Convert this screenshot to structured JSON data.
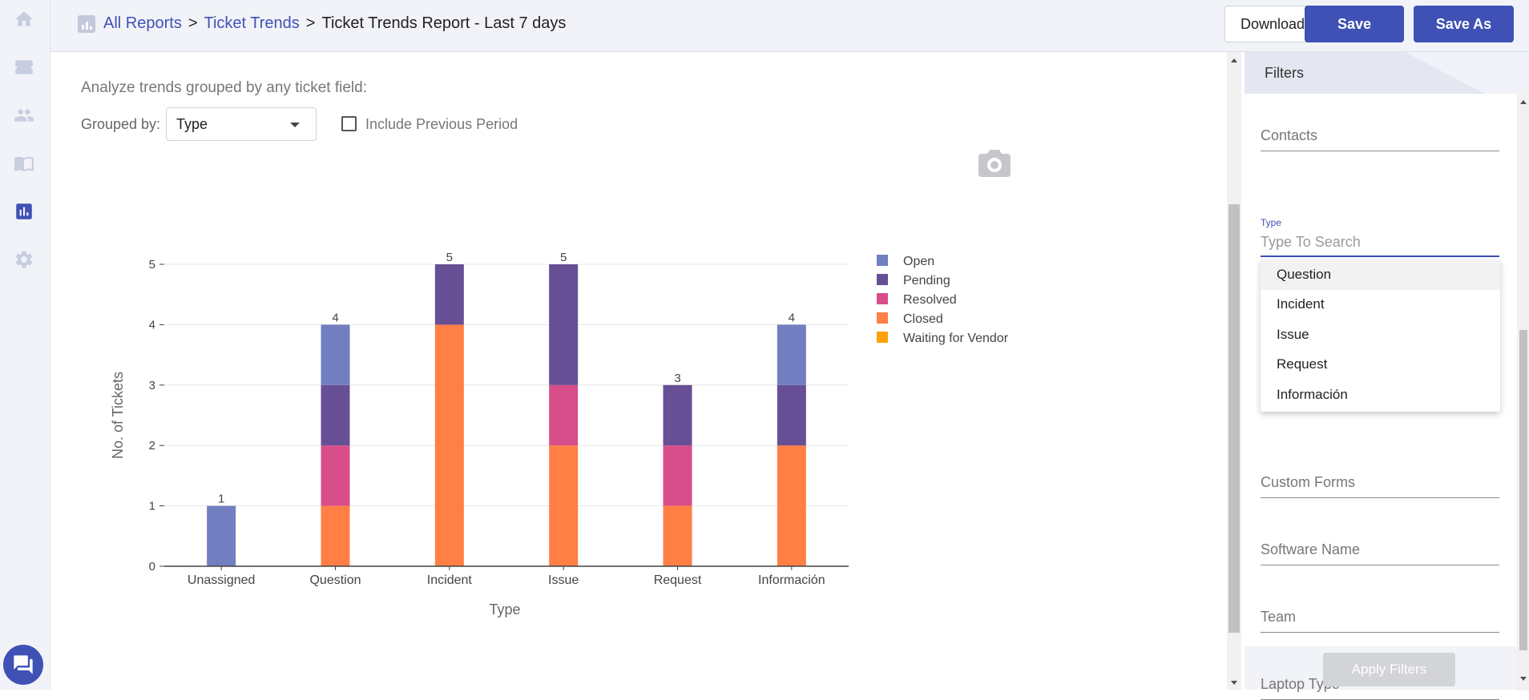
{
  "breadcrumb": {
    "all_reports": "All Reports",
    "sep1": ">",
    "ticket_trends": "Ticket Trends",
    "sep2": ">",
    "current": "Ticket Trends Report - Last 7 days"
  },
  "toolbar": {
    "download_label": "Download",
    "save_label": "Save",
    "save_as_label": "Save As"
  },
  "sidebar": {
    "icons": [
      "home-icon",
      "ticket-icon",
      "contacts-icon",
      "knowledge-base-icon",
      "reports-icon",
      "settings-icon"
    ],
    "active": "reports-icon"
  },
  "report": {
    "intro": "Analyze trends grouped by any ticket field:",
    "grouped_by_label": "Grouped by:",
    "grouped_by_value": "Type",
    "include_previous_label": "Include Previous Period",
    "include_previous_checked": false
  },
  "chart_data": {
    "type": "bar",
    "stacked": true,
    "categories": [
      "Unassigned",
      "Question",
      "Incident",
      "Issue",
      "Request",
      "Información"
    ],
    "series": [
      {
        "name": "Closed",
        "color": "#ff7f45",
        "values": [
          0,
          1,
          4,
          2,
          1,
          2
        ]
      },
      {
        "name": "Resolved",
        "color": "#d84e8a",
        "values": [
          0,
          1,
          0,
          1,
          1,
          0
        ]
      },
      {
        "name": "Pending",
        "color": "#674f96",
        "values": [
          0,
          1,
          1,
          2,
          1,
          1
        ]
      },
      {
        "name": "Open",
        "color": "#717fc0",
        "values": [
          1,
          1,
          0,
          0,
          0,
          1
        ]
      },
      {
        "name": "Waiting for Vendor",
        "color": "#ffa20a",
        "values": [
          0,
          0,
          0,
          0,
          0,
          0
        ]
      }
    ],
    "legend": [
      "Open",
      "Pending",
      "Resolved",
      "Closed",
      "Waiting for Vendor"
    ],
    "totals": [
      1,
      4,
      5,
      5,
      3,
      4
    ],
    "xlabel": "Type",
    "ylabel": "No. of Tickets",
    "ylim": [
      0,
      5
    ],
    "yticks": [
      "0",
      "1",
      "2",
      "3",
      "4",
      "5"
    ],
    "grid": true,
    "legend_position": "right"
  },
  "filters": {
    "title": "Filters",
    "contacts_placeholder": "Contacts",
    "type_label": "Type",
    "type_placeholder": "Type To Search",
    "type_options": [
      "Question",
      "Incident",
      "Issue",
      "Request",
      "Información"
    ],
    "custom_forms_placeholder": "Custom Forms",
    "software_name_placeholder": "Software Name",
    "team_placeholder": "Team",
    "laptop_type_placeholder": "Laptop Type",
    "apply_label": "Apply Filters"
  }
}
